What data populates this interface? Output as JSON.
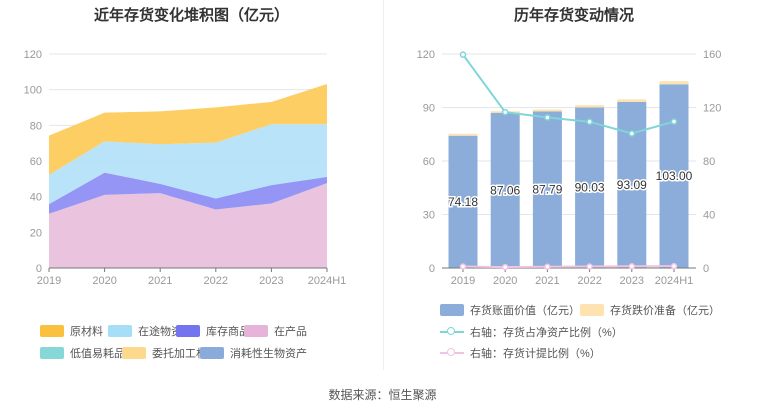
{
  "source": "数据来源：恒生聚源",
  "chart_data": [
    {
      "type": "area",
      "title": "近年存货变化堆积图（亿元）",
      "categories": [
        "2019",
        "2020",
        "2021",
        "2022",
        "2023",
        "2024H1"
      ],
      "ylim": [
        0,
        120
      ],
      "yticks": [
        0,
        20,
        40,
        60,
        80,
        100,
        120
      ],
      "series": [
        {
          "name": "在产品",
          "color": "#e9c0dc",
          "values": [
            30.4,
            41.0,
            42.0,
            32.8,
            36.2,
            47.6
          ]
        },
        {
          "name": "库存商品",
          "color": "#8f8ff5",
          "values": [
            5.4,
            12.5,
            5.2,
            6.2,
            10.3,
            3.5
          ]
        },
        {
          "name": "在途物资",
          "color": "#b5e2f8",
          "values": [
            16.4,
            17.5,
            22.2,
            31.3,
            34.1,
            29.5
          ]
        },
        {
          "name": "原材料",
          "color": "#fdcb5c",
          "values": [
            22.0,
            16.1,
            18.4,
            19.8,
            12.5,
            22.6
          ]
        }
      ],
      "legend": [
        {
          "name": "原材料",
          "color": "#fbc13e"
        },
        {
          "name": "在途物资",
          "color": "#a5dff7"
        },
        {
          "name": "库存商品",
          "color": "#7474ee"
        },
        {
          "name": "在产品",
          "color": "#e6b4d8"
        },
        {
          "name": "低值易耗品",
          "color": "#86d8d8"
        },
        {
          "name": "委托加工材料",
          "color": "#fdd98e"
        },
        {
          "name": "消耗性生物资产",
          "color": "#8aaadc"
        }
      ]
    },
    {
      "type": "bar",
      "title": "历年存货变动情况",
      "categories": [
        "2019",
        "2020",
        "2021",
        "2022",
        "2023",
        "2024H1"
      ],
      "ylim": [
        0,
        120
      ],
      "yticks": [
        0,
        30,
        60,
        90,
        120
      ],
      "y2lim": [
        0,
        160
      ],
      "y2ticks": [
        0,
        40,
        80,
        120,
        160
      ],
      "bars": [
        {
          "name": "存货账面价值（亿元）",
          "color": "#8cacd9",
          "values": [
            74.18,
            87.06,
            87.79,
            90.03,
            93.09,
            103.0
          ],
          "labels": [
            "74.18",
            "87.06",
            "87.79",
            "90.03",
            "93.09",
            "103.00"
          ]
        },
        {
          "name": "存货跌价准备（亿元）",
          "color": "#fde3b0",
          "values": [
            0.8,
            0.6,
            0.8,
            1.0,
            1.2,
            1.5
          ]
        }
      ],
      "lines": [
        {
          "name": "右轴：存货占净资产比例（%）",
          "color": "#7fd6d9",
          "values": [
            159.5,
            116.5,
            112.5,
            109.3,
            100.6,
            109.5
          ]
        },
        {
          "name": "右轴：存货计提比例（%）",
          "color": "#f0c4e4",
          "values": [
            1.1,
            0.7,
            0.9,
            1.1,
            1.3,
            1.4
          ]
        }
      ]
    }
  ]
}
